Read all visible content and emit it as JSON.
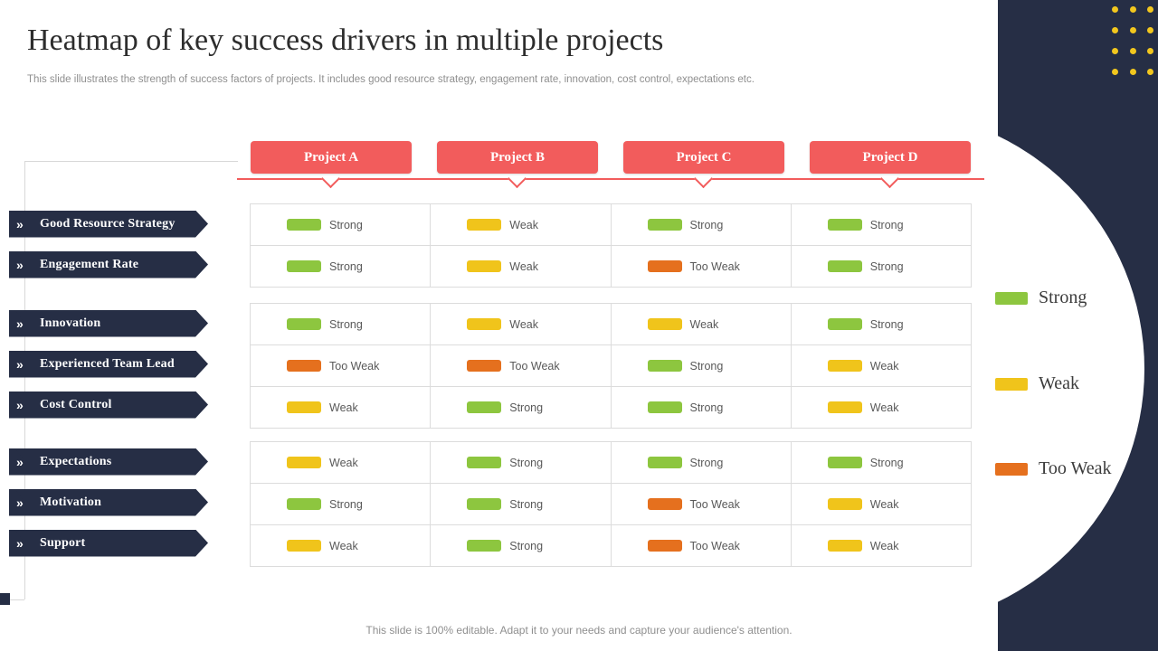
{
  "slide": {
    "title": "Heatmap of key success drivers in multiple projects",
    "subtitle": "This slide illustrates the strength of success factors of projects. It includes good resource strategy, engagement rate, innovation, cost control, expectations etc.",
    "footer": "This slide is 100% editable. Adapt it to your needs and capture your audience's attention.",
    "row_marker": "»"
  },
  "colors": {
    "navy": "#262E45",
    "coral": "#F25C5C",
    "strong_green": "#8DC63F",
    "weak_yellow": "#F0C41B",
    "too_weak_orange": "#E5701E",
    "dot_yellow": "#F2C71E"
  },
  "chart_data": {
    "type": "heatmap",
    "title": "Heatmap of key success drivers in multiple projects",
    "columns": [
      "Project A",
      "Project B",
      "Project C",
      "Project D"
    ],
    "row_groups": [
      {
        "rows": [
          {
            "label": "Good Resource Strategy",
            "values": [
              "Strong",
              "Weak",
              "Strong",
              "Strong"
            ]
          },
          {
            "label": "Engagement Rate",
            "values": [
              "Strong",
              "Weak",
              "Too Weak",
              "Strong"
            ]
          }
        ]
      },
      {
        "rows": [
          {
            "label": "Innovation",
            "values": [
              "Strong",
              "Weak",
              "Weak",
              "Strong"
            ]
          },
          {
            "label": "Experienced Team Lead",
            "values": [
              "Too Weak",
              "Too Weak",
              "Strong",
              "Weak"
            ]
          },
          {
            "label": "Cost Control",
            "values": [
              "Weak",
              "Strong",
              "Strong",
              "Weak"
            ]
          }
        ]
      },
      {
        "rows": [
          {
            "label": "Expectations",
            "values": [
              "Weak",
              "Strong",
              "Strong",
              "Strong"
            ]
          },
          {
            "label": "Motivation",
            "values": [
              "Strong",
              "Strong",
              "Too Weak",
              "Weak"
            ]
          },
          {
            "label": "Support",
            "values": [
              "Weak",
              "Strong",
              "Too Weak",
              "Weak"
            ]
          }
        ]
      }
    ],
    "levels": {
      "Strong": "#8DC63F",
      "Weak": "#F0C41B",
      "Too Weak": "#E5701E"
    },
    "legend": [
      {
        "label": "Strong",
        "color": "#8DC63F"
      },
      {
        "label": "Weak",
        "color": "#F0C41B"
      },
      {
        "label": "Too Weak",
        "color": "#E5701E"
      }
    ],
    "legend_position": "right"
  }
}
